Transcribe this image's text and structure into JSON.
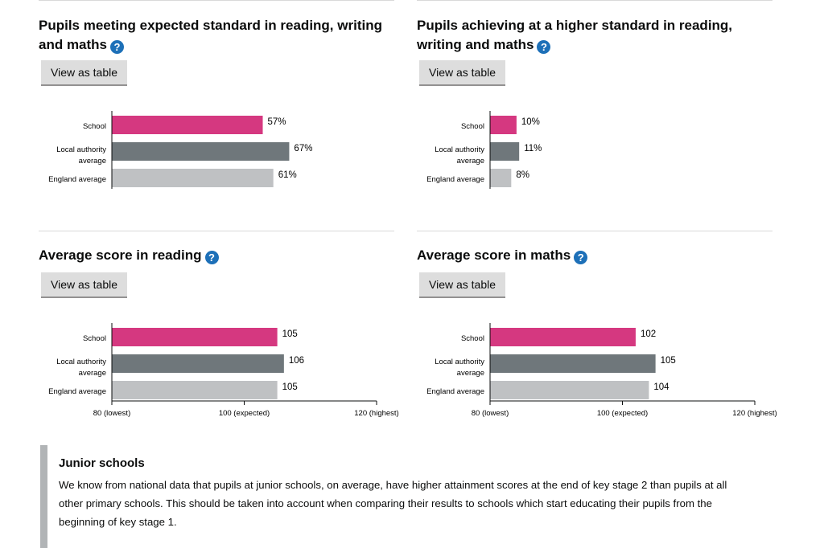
{
  "charts": [
    {
      "title": "Pupils meeting expected standard in reading, writing and maths",
      "button_label": "View as table",
      "help_glyph": "?",
      "chart_data": {
        "type": "bar",
        "categories": [
          "School",
          "Local authority average",
          "England average"
        ],
        "values": [
          57,
          67,
          61
        ],
        "value_suffix": "%",
        "xlim": [
          0,
          100
        ],
        "show_axis": false
      }
    },
    {
      "title": "Pupils achieving at a higher standard in reading, writing and maths",
      "button_label": "View as table",
      "help_glyph": "?",
      "chart_data": {
        "type": "bar",
        "categories": [
          "School",
          "Local authority average",
          "England average"
        ],
        "values": [
          10,
          11,
          8
        ],
        "value_suffix": "%",
        "xlim": [
          0,
          100
        ],
        "show_axis": false
      }
    },
    {
      "title": "Average score in reading",
      "button_label": "View as table",
      "help_glyph": "?",
      "chart_data": {
        "type": "bar",
        "categories": [
          "School",
          "Local authority average",
          "England average"
        ],
        "values": [
          105,
          106,
          105
        ],
        "value_suffix": "",
        "xlim": [
          80,
          120
        ],
        "show_axis": true,
        "ticks": [
          80,
          100,
          120
        ],
        "tick_labels": [
          "80 (lowest)",
          "100 (expected)",
          "120 (highest)"
        ]
      }
    },
    {
      "title": "Average score in maths",
      "button_label": "View as table",
      "help_glyph": "?",
      "chart_data": {
        "type": "bar",
        "categories": [
          "School",
          "Local authority average",
          "England average"
        ],
        "values": [
          102,
          105,
          104
        ],
        "value_suffix": "",
        "xlim": [
          80,
          120
        ],
        "show_axis": true,
        "ticks": [
          80,
          100,
          120
        ],
        "tick_labels": [
          "80 (lowest)",
          "100 (expected)",
          "120 (highest)"
        ]
      }
    }
  ],
  "colors": {
    "school": "#d53880",
    "local_authority": "#6f777b",
    "england": "#bfc1c3"
  },
  "note": {
    "title": "Junior schools",
    "body": "We know from national data that pupils at junior schools, on average, have higher attainment scores at the end of key stage 2 than pupils at all other primary schools. This should be taken into account when comparing their results to schools which start educating their pupils from the beginning of key stage 1."
  }
}
